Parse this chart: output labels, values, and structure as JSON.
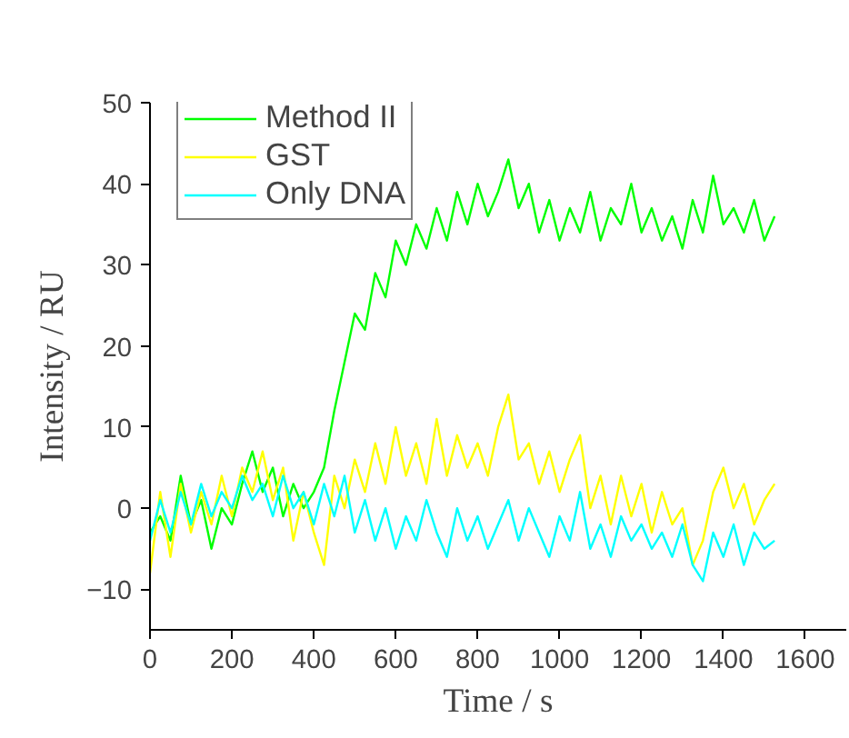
{
  "chart_data": {
    "type": "line",
    "xlabel": "Time / s",
    "ylabel": "Intensity / RU",
    "x": [
      0,
      25,
      50,
      75,
      100,
      125,
      150,
      175,
      200,
      225,
      250,
      275,
      300,
      325,
      350,
      375,
      400,
      425,
      450,
      475,
      500,
      525,
      550,
      575,
      600,
      625,
      650,
      675,
      700,
      725,
      750,
      775,
      800,
      825,
      850,
      875,
      900,
      925,
      950,
      975,
      1000,
      1025,
      1050,
      1075,
      1100,
      1125,
      1150,
      1175,
      1200,
      1225,
      1250,
      1275,
      1300,
      1325,
      1350,
      1375,
      1400,
      1425,
      1450,
      1475,
      1500,
      1525
    ],
    "series": [
      {
        "name": "Method II",
        "color": "#00ff00",
        "values": [
          -3,
          -1,
          -4,
          4,
          -2,
          1,
          -5,
          0,
          -2,
          3,
          7,
          2,
          5,
          -1,
          3,
          0,
          2,
          5,
          12,
          18,
          24,
          22,
          29,
          26,
          33,
          30,
          35,
          32,
          37,
          33,
          39,
          35,
          40,
          36,
          39,
          43,
          37,
          40,
          34,
          38,
          33,
          37,
          34,
          39,
          33,
          37,
          35,
          40,
          34,
          37,
          33,
          36,
          32,
          38,
          34,
          41,
          35,
          37,
          34,
          38,
          33,
          36
        ]
      },
      {
        "name": "GST",
        "color": "#ffff00",
        "values": [
          -8,
          2,
          -6,
          3,
          -3,
          2,
          -2,
          4,
          -1,
          5,
          2,
          7,
          1,
          5,
          -4,
          2,
          -3,
          -7,
          4,
          0,
          6,
          2,
          8,
          3,
          10,
          4,
          8,
          3,
          11,
          4,
          9,
          5,
          8,
          4,
          10,
          14,
          6,
          8,
          3,
          7,
          2,
          6,
          9,
          0,
          4,
          -2,
          4,
          -1,
          3,
          -3,
          2,
          -2,
          0,
          -7,
          -4,
          2,
          5,
          0,
          3,
          -2,
          1,
          3
        ]
      },
      {
        "name": "Only DNA",
        "color": "#00ffff",
        "values": [
          -4,
          1,
          -3,
          2,
          -2,
          3,
          -1,
          2,
          0,
          4,
          1,
          3,
          -1,
          4,
          0,
          2,
          -2,
          3,
          -1,
          4,
          -3,
          1,
          -4,
          0,
          -5,
          -1,
          -4,
          1,
          -3,
          -6,
          0,
          -4,
          -1,
          -5,
          -2,
          1,
          -4,
          0,
          -3,
          -6,
          -1,
          -4,
          2,
          -5,
          -2,
          -6,
          -1,
          -4,
          -2,
          -5,
          -3,
          -6,
          -2,
          -7,
          -9,
          -3,
          -6,
          -2,
          -7,
          -3,
          -5,
          -4
        ]
      }
    ],
    "xlim": [
      0,
      1700
    ],
    "xticks": [
      0,
      200,
      400,
      600,
      800,
      1000,
      1200,
      1400,
      1600
    ],
    "ylim": [
      -15,
      50
    ],
    "yticks": [
      -10,
      0,
      10,
      20,
      30,
      40,
      50
    ],
    "grid": false,
    "legend": "top",
    "line_style": "solid"
  }
}
